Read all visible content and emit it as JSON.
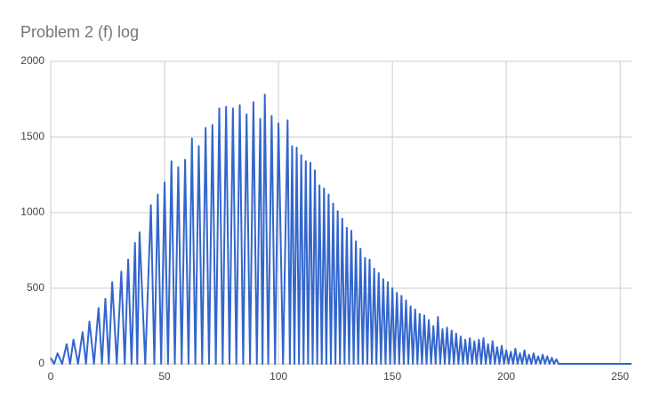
{
  "chart_data": {
    "type": "line",
    "title": "Problem 2 (f) log",
    "x": [
      0,
      1.5,
      3,
      5,
      7,
      8.5,
      10,
      12,
      14,
      15.5,
      17,
      19,
      21,
      22.5,
      24,
      25.5,
      27,
      29,
      31,
      32.5,
      34,
      35.5,
      37,
      38,
      39,
      41.5,
      44,
      45.5,
      47,
      48.5,
      50,
      51.5,
      53,
      54.5,
      56,
      57.5,
      59,
      60.5,
      62,
      63.5,
      65,
      66.5,
      68,
      69.5,
      71,
      72.5,
      74,
      75.5,
      77,
      78.5,
      80,
      81.5,
      83,
      84.5,
      86,
      87.5,
      89,
      90.5,
      92,
      93,
      94,
      95.5,
      97,
      98.5,
      100,
      102,
      104,
      105,
      106,
      107,
      108,
      109,
      110,
      111,
      112,
      113,
      114,
      115,
      116,
      117,
      118,
      119,
      120,
      121,
      122,
      123,
      124,
      125,
      126,
      127,
      128,
      129,
      130,
      131,
      132,
      133,
      134,
      135,
      136,
      137,
      138,
      139,
      140,
      141,
      142,
      143,
      144,
      145,
      146,
      147,
      148,
      149,
      150,
      151,
      152,
      153,
      154,
      155,
      156,
      157,
      158,
      159,
      160,
      161,
      162,
      163,
      164,
      165,
      166,
      167,
      168,
      169,
      170,
      171,
      172,
      173,
      174,
      175,
      176,
      177,
      178,
      179,
      180,
      181,
      182,
      183,
      184,
      185,
      186,
      187,
      188,
      189,
      190,
      191,
      192,
      193,
      194,
      195,
      196,
      197,
      198,
      199,
      200,
      201,
      202,
      203,
      204,
      205,
      206,
      207,
      208,
      209,
      210,
      211,
      212,
      213,
      214,
      215,
      216,
      217,
      218,
      219,
      220,
      221,
      222,
      223,
      255
    ],
    "values": [
      40,
      0,
      70,
      0,
      130,
      0,
      160,
      0,
      210,
      0,
      280,
      0,
      370,
      0,
      430,
      0,
      540,
      0,
      610,
      0,
      690,
      0,
      800,
      0,
      870,
      0,
      1050,
      0,
      1120,
      0,
      1200,
      0,
      1340,
      0,
      1300,
      0,
      1350,
      0,
      1490,
      0,
      1440,
      0,
      1560,
      0,
      1580,
      0,
      1690,
      0,
      1700,
      0,
      1690,
      0,
      1710,
      0,
      1650,
      0,
      1730,
      0,
      1620,
      0,
      1780,
      0,
      1640,
      0,
      1590,
      0,
      1610,
      0,
      1440,
      0,
      1430,
      0,
      1380,
      0,
      1340,
      0,
      1330,
      0,
      1280,
      0,
      1180,
      0,
      1160,
      0,
      1120,
      0,
      1060,
      0,
      1010,
      0,
      960,
      0,
      900,
      0,
      880,
      0,
      810,
      0,
      760,
      0,
      700,
      0,
      690,
      0,
      630,
      0,
      600,
      0,
      560,
      0,
      540,
      0,
      500,
      0,
      470,
      0,
      450,
      0,
      420,
      0,
      380,
      0,
      360,
      0,
      330,
      0,
      320,
      0,
      290,
      0,
      250,
      0,
      310,
      0,
      230,
      0,
      240,
      0,
      220,
      0,
      200,
      0,
      180,
      0,
      160,
      0,
      170,
      0,
      150,
      0,
      160,
      0,
      170,
      0,
      130,
      0,
      150,
      0,
      110,
      0,
      120,
      0,
      90,
      0,
      80,
      0,
      100,
      0,
      70,
      0,
      90,
      0,
      60,
      0,
      70,
      0,
      50,
      0,
      60,
      0,
      50,
      0,
      40,
      0,
      30,
      0,
      0
    ],
    "color": "#3366cc",
    "xlim": [
      0,
      255
    ],
    "xticks": [
      0,
      50,
      100,
      150,
      200,
      250
    ],
    "ylim": [
      0,
      2000
    ],
    "yticks": [
      0,
      500,
      1000,
      1500,
      2000
    ],
    "grid": true
  }
}
